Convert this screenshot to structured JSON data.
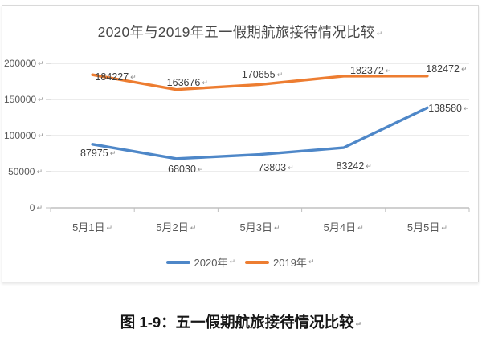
{
  "chart_data": {
    "type": "line",
    "title": "2020年与2019年五一假期航旅接待情况比较",
    "categories": [
      "5月1日",
      "5月2日",
      "5月3日",
      "5月4日",
      "5月5日"
    ],
    "series": [
      {
        "name": "2020年",
        "color": "#4E87C8",
        "values": [
          87975,
          68030,
          73803,
          83242,
          138580
        ]
      },
      {
        "name": "2019年",
        "color": "#ED7D31",
        "values": [
          184227,
          163676,
          170655,
          182372,
          182472
        ]
      }
    ],
    "y_ticks": [
      0,
      50000,
      100000,
      150000,
      200000
    ],
    "ylim": [
      0,
      200000
    ],
    "grid": "horizontal",
    "legend_position": "bottom",
    "colors": {
      "gridline": "#d9d9d9",
      "axis": "#b3b3b3",
      "tick": "#bfbfbf",
      "tick_label": "#595959",
      "data_label": "#3f3f3f",
      "title": "#474747",
      "frame_border": "#d9d9d9"
    }
  },
  "caption": "图 1-9：五一假期航旅接待情况比较",
  "formatting_mark": "↵"
}
